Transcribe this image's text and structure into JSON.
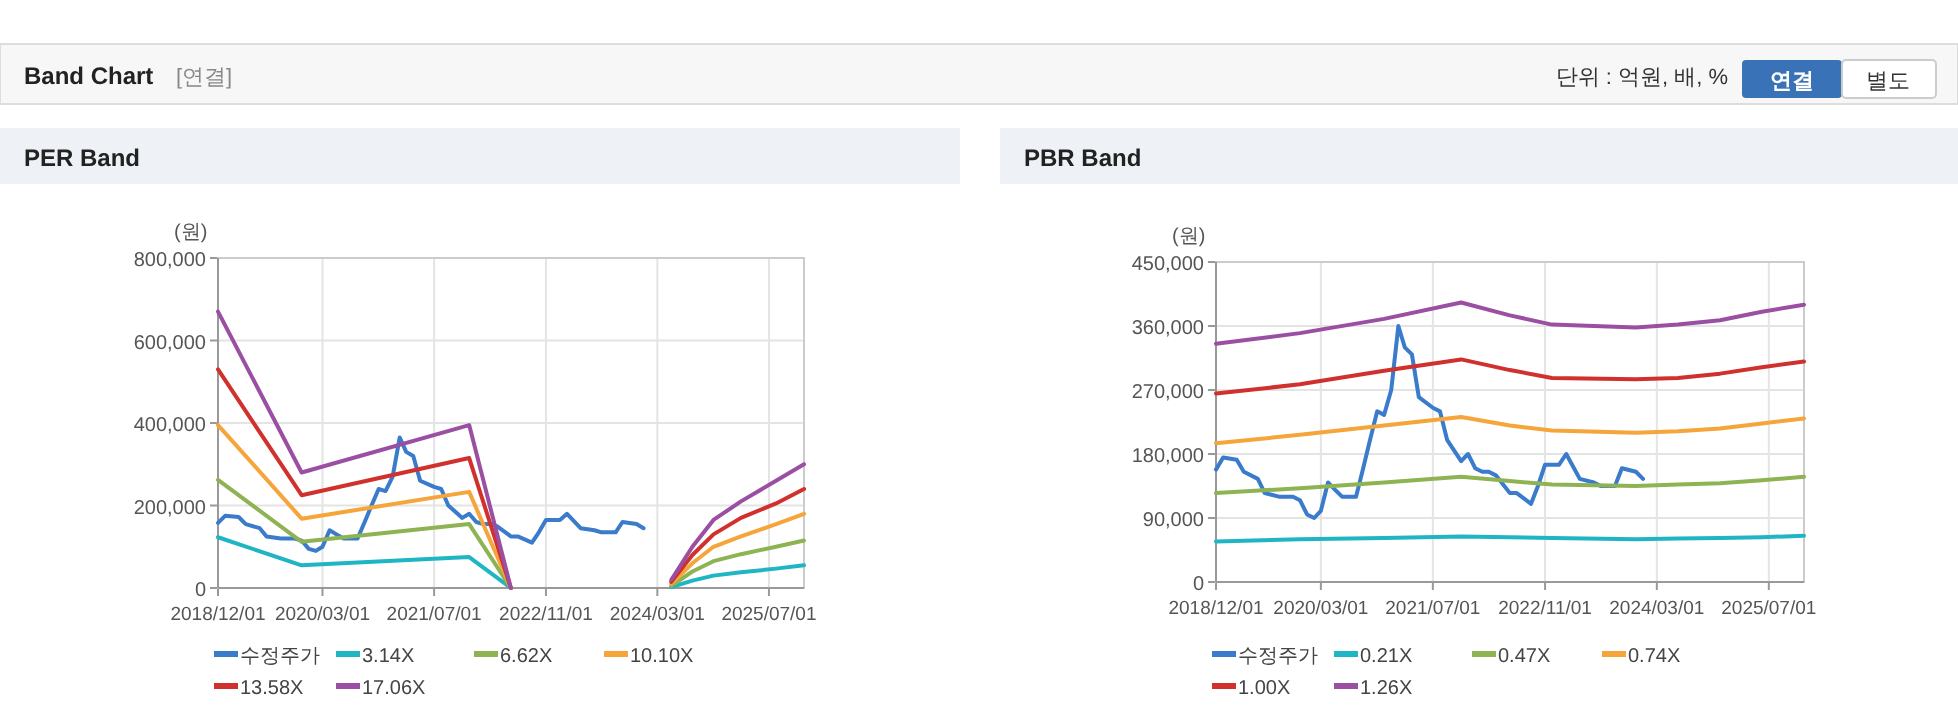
{
  "chart_data": [
    {
      "type": "line",
      "title": "PER Band",
      "ylabel": "(원)",
      "annotations": [
        "Band Chart",
        "[연결]",
        "단위 : 억원, 배, %",
        "연결",
        "별도"
      ],
      "xlim": [
        "2018-12-01",
        "2025-12-01"
      ],
      "xticks": [
        {
          "value": "2018-12-01",
          "label": "2018/12/01"
        },
        {
          "value": "2020-03-01",
          "label": "2020/03/01"
        },
        {
          "value": "2021-07-01",
          "label": "2021/07/01"
        },
        {
          "value": "2022-11-01",
          "label": "2022/11/01"
        },
        {
          "value": "2024-03-01",
          "label": "2024/03/01"
        },
        {
          "value": "2025-07-01",
          "label": "2025/07/01"
        }
      ],
      "ylim": [
        0,
        800000
      ],
      "yticks": [
        {
          "value": 0,
          "label": "0"
        },
        {
          "value": 200000,
          "label": "200,000"
        },
        {
          "value": 400000,
          "label": "400,000"
        },
        {
          "value": 600000,
          "label": "600,000"
        },
        {
          "value": 800000,
          "label": "800,000"
        }
      ],
      "grid": true,
      "legend": "bottom",
      "marker": "none",
      "line_style": "solid",
      "series": [
        {
          "name": "수정주가",
          "color": "#3a7bcc",
          "x": [
            "2018-12",
            "2019-01",
            "2019-03",
            "2019-04",
            "2019-06",
            "2019-07",
            "2019-09",
            "2019-11",
            "2019-12",
            "2020-01",
            "2020-02",
            "2020-03",
            "2020-04",
            "2020-05",
            "2020-06",
            "2020-08",
            "2020-09",
            "2020-10",
            "2020-11",
            "2020-12",
            "2021-01",
            "2021-02",
            "2021-03",
            "2021-04",
            "2021-05",
            "2021-07",
            "2021-08",
            "2021-09",
            "2021-11",
            "2021-12",
            "2022-01",
            "2022-02",
            "2022-03",
            "2022-04",
            "2022-06",
            "2022-07",
            "2022-09",
            "2022-10",
            "2022-11",
            "2023-01",
            "2023-02",
            "2023-04",
            "2023-06",
            "2023-07",
            "2023-09",
            "2023-10",
            "2023-12",
            "2024-01"
          ],
          "values": [
            158000,
            175000,
            172000,
            155000,
            145000,
            125000,
            120000,
            120000,
            115000,
            95000,
            90000,
            100000,
            140000,
            130000,
            120000,
            120000,
            160000,
            200000,
            240000,
            235000,
            270000,
            365000,
            330000,
            320000,
            260000,
            245000,
            240000,
            200000,
            170000,
            180000,
            160000,
            155000,
            155000,
            150000,
            125000,
            125000,
            110000,
            135000,
            165000,
            165000,
            180000,
            145000,
            140000,
            135000,
            135000,
            160000,
            155000,
            145000
          ]
        },
        {
          "name": "3.14X",
          "color": "#1fb5c4",
          "x": [
            "2018-12",
            "2019-12",
            "2021-12",
            "2022-06",
            "2023-06",
            "2024-05",
            "2024-08",
            "2024-11",
            "2025-03",
            "2025-08",
            "2025-12"
          ],
          "values": [
            123000,
            55000,
            75000,
            0,
            null,
            2000,
            18000,
            30000,
            38000,
            47000,
            55000
          ]
        },
        {
          "name": "6.62X",
          "color": "#8db352",
          "x": [
            "2018-12",
            "2019-12",
            "2021-12",
            "2022-06",
            "2023-06",
            "2024-05",
            "2024-08",
            "2024-11",
            "2025-03",
            "2025-08",
            "2025-12"
          ],
          "values": [
            262000,
            112000,
            155000,
            0,
            null,
            5000,
            40000,
            65000,
            82000,
            100000,
            115000
          ]
        },
        {
          "name": "10.10X",
          "color": "#f5a53a",
          "x": [
            "2018-12",
            "2019-12",
            "2021-12",
            "2022-06",
            "2023-06",
            "2024-05",
            "2024-08",
            "2024-11",
            "2025-03",
            "2025-08",
            "2025-12"
          ],
          "values": [
            395000,
            168000,
            233000,
            0,
            null,
            10000,
            60000,
            100000,
            125000,
            155000,
            180000
          ]
        },
        {
          "name": "13.58X",
          "color": "#d0312d",
          "x": [
            "2018-12",
            "2019-12",
            "2021-12",
            "2022-06",
            "2023-06",
            "2024-05",
            "2024-08",
            "2024-11",
            "2025-03",
            "2025-08",
            "2025-12"
          ],
          "values": [
            530000,
            225000,
            315000,
            0,
            null,
            15000,
            80000,
            130000,
            170000,
            205000,
            240000
          ]
        },
        {
          "name": "17.06X",
          "color": "#9b4fa3",
          "x": [
            "2018-12",
            "2019-12",
            "2021-12",
            "2022-06",
            "2023-06",
            "2024-05",
            "2024-08",
            "2024-11",
            "2025-03",
            "2025-08",
            "2025-12"
          ],
          "values": [
            670000,
            280000,
            395000,
            0,
            null,
            20000,
            100000,
            165000,
            210000,
            260000,
            300000
          ]
        }
      ]
    },
    {
      "type": "line",
      "title": "PBR Band",
      "ylabel": "(원)",
      "xlim": [
        "2018-12-01",
        "2025-12-01"
      ],
      "xticks": [
        {
          "value": "2018-12-01",
          "label": "2018/12/01"
        },
        {
          "value": "2020-03-01",
          "label": "2020/03/01"
        },
        {
          "value": "2021-07-01",
          "label": "2021/07/01"
        },
        {
          "value": "2022-11-01",
          "label": "2022/11/01"
        },
        {
          "value": "2024-03-01",
          "label": "2024/03/01"
        },
        {
          "value": "2025-07-01",
          "label": "2025/07/01"
        }
      ],
      "ylim": [
        0,
        450000
      ],
      "yticks": [
        {
          "value": 0,
          "label": "0"
        },
        {
          "value": 90000,
          "label": "90,000"
        },
        {
          "value": 180000,
          "label": "180,000"
        },
        {
          "value": 270000,
          "label": "270,000"
        },
        {
          "value": 360000,
          "label": "360,000"
        },
        {
          "value": 450000,
          "label": "450,000"
        }
      ],
      "grid": true,
      "legend": "bottom",
      "marker": "none",
      "line_style": "solid",
      "series": [
        {
          "name": "수정주가",
          "color": "#3a7bcc",
          "x": [
            "2018-12",
            "2019-01",
            "2019-03",
            "2019-04",
            "2019-06",
            "2019-07",
            "2019-09",
            "2019-11",
            "2019-12",
            "2020-01",
            "2020-02",
            "2020-03",
            "2020-04",
            "2020-05",
            "2020-06",
            "2020-08",
            "2020-09",
            "2020-10",
            "2020-11",
            "2020-12",
            "2021-01",
            "2021-02",
            "2021-03",
            "2021-04",
            "2021-05",
            "2021-07",
            "2021-08",
            "2021-09",
            "2021-11",
            "2021-12",
            "2022-01",
            "2022-02",
            "2022-03",
            "2022-04",
            "2022-06",
            "2022-07",
            "2022-09",
            "2022-10",
            "2022-11",
            "2023-01",
            "2023-02",
            "2023-04",
            "2023-06",
            "2023-07",
            "2023-09",
            "2023-10",
            "2023-12",
            "2024-01"
          ],
          "values": [
            158000,
            175000,
            172000,
            155000,
            145000,
            125000,
            120000,
            120000,
            115000,
            95000,
            90000,
            100000,
            140000,
            130000,
            120000,
            120000,
            160000,
            200000,
            240000,
            235000,
            270000,
            360000,
            330000,
            320000,
            260000,
            245000,
            240000,
            200000,
            170000,
            180000,
            160000,
            155000,
            155000,
            150000,
            125000,
            125000,
            110000,
            135000,
            165000,
            165000,
            180000,
            145000,
            140000,
            135000,
            135000,
            160000,
            155000,
            145000
          ]
        },
        {
          "name": "0.21X",
          "color": "#1fb5c4",
          "x": [
            "2018-12",
            "2019-12",
            "2020-12",
            "2021-11",
            "2022-06",
            "2022-12",
            "2023-12",
            "2024-06",
            "2024-12",
            "2025-06",
            "2025-12"
          ],
          "values": [
            57000,
            60000,
            62000,
            64000,
            63000,
            62000,
            60000,
            61000,
            62000,
            63000,
            65000
          ]
        },
        {
          "name": "0.47X",
          "color": "#8db352",
          "x": [
            "2018-12",
            "2019-12",
            "2020-12",
            "2021-11",
            "2022-06",
            "2022-12",
            "2023-12",
            "2024-06",
            "2024-12",
            "2025-06",
            "2025-12"
          ],
          "values": [
            125000,
            132000,
            140000,
            148000,
            142000,
            137000,
            135000,
            137000,
            139000,
            143000,
            148000
          ]
        },
        {
          "name": "0.74X",
          "color": "#f5a53a",
          "x": [
            "2018-12",
            "2019-12",
            "2020-12",
            "2021-11",
            "2022-06",
            "2022-12",
            "2023-12",
            "2024-06",
            "2024-12",
            "2025-06",
            "2025-12"
          ],
          "values": [
            195000,
            207000,
            220000,
            232000,
            220000,
            213000,
            210000,
            212000,
            216000,
            223000,
            230000
          ]
        },
        {
          "name": "1.00X",
          "color": "#d0312d",
          "x": [
            "2018-12",
            "2019-12",
            "2020-12",
            "2021-11",
            "2022-06",
            "2022-12",
            "2023-12",
            "2024-06",
            "2024-12",
            "2025-06",
            "2025-12"
          ],
          "values": [
            265000,
            278000,
            297000,
            313000,
            298000,
            287000,
            285000,
            287000,
            293000,
            302000,
            310000
          ]
        },
        {
          "name": "1.26X",
          "color": "#9b4fa3",
          "x": [
            "2018-12",
            "2019-12",
            "2020-12",
            "2021-11",
            "2022-06",
            "2022-12",
            "2023-12",
            "2024-06",
            "2024-12",
            "2025-06",
            "2025-12"
          ],
          "values": [
            335000,
            350000,
            370000,
            393000,
            375000,
            362000,
            358000,
            362000,
            368000,
            380000,
            390000
          ]
        }
      ]
    }
  ]
}
